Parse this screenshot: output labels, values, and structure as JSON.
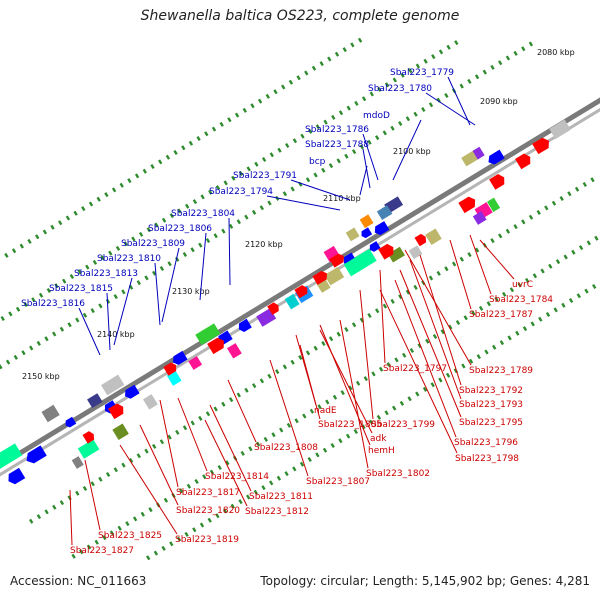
{
  "title": "Shewanella baltica OS223, complete genome",
  "footer": {
    "accession": "Accession: NC_011663",
    "summary": "Topology: circular; Length: 5,145,902 bp; Genes: 4,281"
  },
  "colors": {
    "backbone": "#7a7a7a",
    "top_labels": "#0000bb",
    "bottom_labels": "#cc0000",
    "tick": "#2e8b2e",
    "plus_arrows": "#ff0000",
    "minus_arrows": "#0000ff"
  },
  "scale_labels": [
    "2080 kbp",
    "2090 kbp",
    "2100 kbp",
    "2110 kbp",
    "2120 kbp",
    "2130 kbp",
    "2140 kbp",
    "2150 kbp"
  ],
  "top_gene_labels": [
    "Sbal223_1779",
    "Sbal223_1780",
    "mdoD",
    "Sbal223_1786",
    "Sbal223_1788",
    "bcp",
    "Sbal223_1791",
    "Sbal223_1794",
    "Sbal223_1804",
    "Sbal223_1806",
    "Sbal223_1809",
    "Sbal223_1810",
    "Sbal223_1813",
    "Sbal223_1815",
    "Sbal223_1816"
  ],
  "bottom_gene_labels": [
    "uvrC",
    "Sbal223_1784",
    "Sbal223_1787",
    "Sbal223_1789",
    "Sbal223_1797",
    "Sbal223_1792",
    "Sbal223_1793",
    "Sbal223_1795",
    "Sbal223_1799",
    "Sbal223_1796",
    "nadE",
    "Sbal223_1805",
    "adk",
    "hemH",
    "Sbal223_1798",
    "Sbal223_1808",
    "Sbal223_1802",
    "Sbal223_1807",
    "Sbal223_1814",
    "Sbal223_1817",
    "Sbal223_1811",
    "Sbal223_1820",
    "Sbal223_1812",
    "Sbal223_1825",
    "Sbal223_1819",
    "Sbal223_1827"
  ]
}
